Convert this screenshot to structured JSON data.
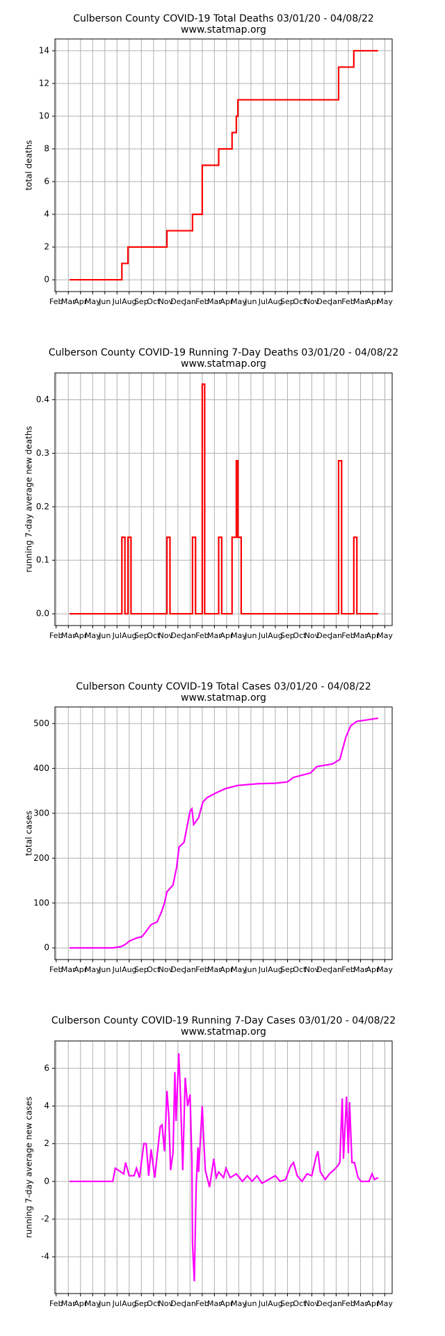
{
  "chart_data": [
    {
      "type": "line",
      "title": "Culberson County COVID-19 Total Deaths 03/01/20 - 04/08/22",
      "subtitle": "www.statmap.org",
      "ylabel": "total deaths",
      "color": "#ff0000",
      "grid": true,
      "xlim": [
        -0.1,
        27.6
      ],
      "ylim": [
        -0.72,
        14.72
      ],
      "yticks": [
        0,
        2,
        4,
        6,
        8,
        10,
        12,
        14
      ],
      "xticks": [
        {
          "value": 0,
          "label": "Feb"
        },
        {
          "value": 1,
          "label": "Mar"
        },
        {
          "value": 2,
          "label": "Apr"
        },
        {
          "value": 3,
          "label": "May"
        },
        {
          "value": 4,
          "label": "Jun"
        },
        {
          "value": 5,
          "label": "Jul"
        },
        {
          "value": 6,
          "label": "Aug"
        },
        {
          "value": 7,
          "label": "Sep"
        },
        {
          "value": 8,
          "label": "Oct"
        },
        {
          "value": 9,
          "label": "Nov"
        },
        {
          "value": 10,
          "label": "Dec"
        },
        {
          "value": 11,
          "label": "Jan"
        },
        {
          "value": 12,
          "label": "Feb"
        },
        {
          "value": 13,
          "label": "Mar"
        },
        {
          "value": 14,
          "label": "Apr"
        },
        {
          "value": 15,
          "label": "May"
        },
        {
          "value": 16,
          "label": "Jun"
        },
        {
          "value": 17,
          "label": "Jul"
        },
        {
          "value": 18,
          "label": "Aug"
        },
        {
          "value": 19,
          "label": "Sep"
        },
        {
          "value": 20,
          "label": "Oct"
        },
        {
          "value": 21,
          "label": "Nov"
        },
        {
          "value": 22,
          "label": "Dec"
        },
        {
          "value": 23,
          "label": "Jan"
        },
        {
          "value": 24,
          "label": "Feb"
        },
        {
          "value": 25,
          "label": "Mar"
        },
        {
          "value": 26,
          "label": "Apr"
        },
        {
          "value": 27,
          "label": "May"
        }
      ],
      "x": [
        1.1,
        5.4,
        5.4,
        5.9,
        5.9,
        9.1,
        9.1,
        11.2,
        11.2,
        12.0,
        12.0,
        13.35,
        13.35,
        14.45,
        14.45,
        14.8,
        14.8,
        14.93,
        14.93,
        23.2,
        23.2,
        24.45,
        24.45,
        26.45
      ],
      "values": [
        0,
        0,
        1,
        1,
        2,
        2,
        3,
        3,
        4,
        4,
        7,
        7,
        8,
        8,
        9,
        9,
        10,
        10,
        11,
        11,
        13,
        13,
        14,
        14
      ]
    },
    {
      "type": "line",
      "title": "Culberson County COVID-19 Running 7-Day Deaths 03/01/20 - 04/08/22",
      "subtitle": "www.statmap.org",
      "ylabel": "running 7-day average new deaths",
      "color": "#ff0000",
      "grid": true,
      "xlim": [
        -0.1,
        27.6
      ],
      "ylim": [
        -0.022,
        0.45
      ],
      "yticks": [
        {
          "value": 0,
          "label": "0.0"
        },
        0.1,
        0.2,
        0.3,
        0.4
      ],
      "xticks": [
        {
          "value": 0,
          "label": "Feb"
        },
        {
          "value": 1,
          "label": "Mar"
        },
        {
          "value": 2,
          "label": "Apr"
        },
        {
          "value": 3,
          "label": "May"
        },
        {
          "value": 4,
          "label": "Jun"
        },
        {
          "value": 5,
          "label": "Jul"
        },
        {
          "value": 6,
          "label": "Aug"
        },
        {
          "value": 7,
          "label": "Sep"
        },
        {
          "value": 8,
          "label": "Oct"
        },
        {
          "value": 9,
          "label": "Nov"
        },
        {
          "value": 10,
          "label": "Dec"
        },
        {
          "value": 11,
          "label": "Jan"
        },
        {
          "value": 12,
          "label": "Feb"
        },
        {
          "value": 13,
          "label": "Mar"
        },
        {
          "value": 14,
          "label": "Apr"
        },
        {
          "value": 15,
          "label": "May"
        },
        {
          "value": 16,
          "label": "Jun"
        },
        {
          "value": 17,
          "label": "Jul"
        },
        {
          "value": 18,
          "label": "Aug"
        },
        {
          "value": 19,
          "label": "Sep"
        },
        {
          "value": 20,
          "label": "Oct"
        },
        {
          "value": 21,
          "label": "Nov"
        },
        {
          "value": 22,
          "label": "Dec"
        },
        {
          "value": 23,
          "label": "Jan"
        },
        {
          "value": 24,
          "label": "Feb"
        },
        {
          "value": 25,
          "label": "Mar"
        },
        {
          "value": 26,
          "label": "Apr"
        },
        {
          "value": 27,
          "label": "May"
        }
      ],
      "x": [
        1.1,
        5.4,
        5.4,
        5.65,
        5.65,
        5.9,
        5.9,
        6.15,
        6.15,
        9.1,
        9.1,
        9.35,
        9.35,
        11.2,
        11.2,
        11.45,
        11.45,
        12.0,
        12.0,
        12.2,
        12.2,
        13.35,
        13.35,
        13.6,
        13.6,
        14.45,
        14.45,
        14.8,
        14.8,
        14.93,
        14.93,
        15.2,
        15.2,
        23.2,
        23.2,
        23.45,
        23.45,
        24.45,
        24.45,
        24.7,
        24.7,
        26.45
      ],
      "values": [
        0,
        0,
        0.143,
        0.143,
        0,
        0,
        0.143,
        0.143,
        0,
        0,
        0.143,
        0.143,
        0,
        0,
        0.143,
        0.143,
        0,
        0,
        0.429,
        0.429,
        0,
        0,
        0.143,
        0.143,
        0,
        0,
        0.143,
        0.143,
        0.286,
        0.286,
        0.143,
        0.143,
        0,
        0,
        0.286,
        0.286,
        0,
        0,
        0.143,
        0.143,
        0,
        0
      ]
    },
    {
      "type": "line",
      "title": "Culberson County COVID-19 Total Cases 03/01/20 - 04/08/22",
      "subtitle": "www.statmap.org",
      "ylabel": "total cases",
      "color": "#ff00ff",
      "grid": true,
      "xlim": [
        -0.1,
        27.6
      ],
      "ylim": [
        -26,
        537
      ],
      "yticks": [
        0,
        100,
        200,
        300,
        400,
        500
      ],
      "xticks": [
        {
          "value": 0,
          "label": "Feb"
        },
        {
          "value": 1,
          "label": "Mar"
        },
        {
          "value": 2,
          "label": "Apr"
        },
        {
          "value": 3,
          "label": "May"
        },
        {
          "value": 4,
          "label": "Jun"
        },
        {
          "value": 5,
          "label": "Jul"
        },
        {
          "value": 6,
          "label": "Aug"
        },
        {
          "value": 7,
          "label": "Sep"
        },
        {
          "value": 8,
          "label": "Oct"
        },
        {
          "value": 9,
          "label": "Nov"
        },
        {
          "value": 10,
          "label": "Dec"
        },
        {
          "value": 11,
          "label": "Jan"
        },
        {
          "value": 12,
          "label": "Feb"
        },
        {
          "value": 13,
          "label": "Mar"
        },
        {
          "value": 14,
          "label": "Apr"
        },
        {
          "value": 15,
          "label": "May"
        },
        {
          "value": 16,
          "label": "Jun"
        },
        {
          "value": 17,
          "label": "Jul"
        },
        {
          "value": 18,
          "label": "Aug"
        },
        {
          "value": 19,
          "label": "Sep"
        },
        {
          "value": 20,
          "label": "Oct"
        },
        {
          "value": 21,
          "label": "Nov"
        },
        {
          "value": 22,
          "label": "Dec"
        },
        {
          "value": 23,
          "label": "Jan"
        },
        {
          "value": 24,
          "label": "Feb"
        },
        {
          "value": 25,
          "label": "Mar"
        },
        {
          "value": 26,
          "label": "Apr"
        },
        {
          "value": 27,
          "label": "May"
        }
      ],
      "x": [
        1.1,
        4.65,
        5.35,
        5.7,
        6.0,
        6.6,
        7.05,
        7.4,
        7.8,
        8.3,
        8.65,
        8.9,
        9.1,
        9.6,
        9.9,
        10.1,
        10.5,
        11.0,
        11.15,
        11.3,
        11.7,
        12.05,
        12.4,
        13.1,
        13.9,
        14.9,
        16.6,
        18,
        19,
        19.5,
        20.9,
        21.4,
        22.7,
        23.3,
        23.5,
        23.8,
        24.2,
        24.7,
        25.5,
        26.45
      ],
      "values": [
        0,
        0,
        3,
        8,
        15,
        22,
        25,
        37,
        52,
        58,
        80,
        100,
        125,
        140,
        180,
        225,
        235,
        305,
        310,
        275,
        290,
        325,
        335,
        345,
        355,
        362,
        366,
        367,
        370,
        380,
        390,
        404,
        410,
        420,
        440,
        470,
        495,
        505,
        508,
        512
      ]
    },
    {
      "type": "line",
      "title": "Culberson County COVID-19 Running 7-Day Cases 03/01/20 - 04/08/22",
      "subtitle": "www.statmap.org",
      "ylabel": "running 7-day average new cases",
      "color": "#ff00ff",
      "grid": true,
      "xlim": [
        -0.1,
        27.6
      ],
      "ylim": [
        -5.95,
        7.45
      ],
      "yticks": [
        -4,
        -2,
        0,
        2,
        4,
        6
      ],
      "xticks": [
        {
          "value": 0,
          "label": "Feb"
        },
        {
          "value": 1,
          "label": "Mar"
        },
        {
          "value": 2,
          "label": "Apr"
        },
        {
          "value": 3,
          "label": "May"
        },
        {
          "value": 4,
          "label": "Jun"
        },
        {
          "value": 5,
          "label": "Jul"
        },
        {
          "value": 6,
          "label": "Aug"
        },
        {
          "value": 7,
          "label": "Sep"
        },
        {
          "value": 8,
          "label": "Oct"
        },
        {
          "value": 9,
          "label": "Nov"
        },
        {
          "value": 10,
          "label": "Dec"
        },
        {
          "value": 11,
          "label": "Jan"
        },
        {
          "value": 12,
          "label": "Feb"
        },
        {
          "value": 13,
          "label": "Mar"
        },
        {
          "value": 14,
          "label": "Apr"
        },
        {
          "value": 15,
          "label": "May"
        },
        {
          "value": 16,
          "label": "Jun"
        },
        {
          "value": 17,
          "label": "Jul"
        },
        {
          "value": 18,
          "label": "Aug"
        },
        {
          "value": 19,
          "label": "Sep"
        },
        {
          "value": 20,
          "label": "Oct"
        },
        {
          "value": 21,
          "label": "Nov"
        },
        {
          "value": 22,
          "label": "Dec"
        },
        {
          "value": 23,
          "label": "Jan"
        },
        {
          "value": 24,
          "label": "Feb"
        },
        {
          "value": 25,
          "label": "Mar"
        },
        {
          "value": 26,
          "label": "Apr"
        },
        {
          "value": 27,
          "label": "May"
        }
      ],
      "x": [
        1.1,
        4.65,
        4.86,
        5.55,
        5.7,
        6.0,
        6.4,
        6.6,
        6.85,
        7.2,
        7.4,
        7.6,
        7.8,
        8.1,
        8.55,
        8.7,
        8.9,
        9.1,
        9.25,
        9.4,
        9.6,
        9.75,
        9.85,
        10.07,
        10.2,
        10.4,
        10.6,
        10.8,
        11.0,
        11.15,
        11.2,
        11.35,
        11.5,
        11.65,
        11.7,
        12.0,
        12.1,
        12.25,
        12.6,
        12.95,
        13.15,
        13.35,
        13.75,
        13.95,
        14.3,
        14.8,
        15.3,
        15.7,
        16.1,
        16.5,
        16.9,
        17.45,
        18.0,
        18.4,
        18.85,
        19.25,
        19.5,
        19.8,
        20.2,
        20.6,
        21.0,
        21.35,
        21.5,
        21.7,
        22.1,
        22.45,
        22.8,
        23.1,
        23.3,
        23.5,
        23.6,
        23.85,
        24.0,
        24.1,
        24.3,
        24.5,
        24.8,
        25.05,
        25.7,
        25.95,
        26.15,
        26.45
      ],
      "values": [
        0,
        0,
        0.7,
        0.4,
        1.0,
        0.3,
        0.3,
        0.7,
        0.2,
        2.0,
        2.0,
        0.3,
        1.7,
        0.2,
        2.9,
        3.0,
        1.6,
        4.8,
        3.5,
        0.6,
        1.5,
        5.8,
        3.2,
        6.8,
        4.8,
        0.6,
        5.5,
        4.0,
        4.6,
        1.0,
        -3.3,
        -5.3,
        -0.3,
        1.8,
        0.5,
        4.0,
        2.5,
        0.6,
        -0.3,
        1.2,
        0.2,
        0.5,
        0.2,
        0.7,
        0.2,
        0.4,
        0.0,
        0.3,
        0.0,
        0.3,
        -0.1,
        0.1,
        0.3,
        0.0,
        0.1,
        0.8,
        1.0,
        0.3,
        0.0,
        0.4,
        0.3,
        1.3,
        1.6,
        0.5,
        0.1,
        0.4,
        0.6,
        0.8,
        1.0,
        4.4,
        1.2,
        4.5,
        1.5,
        4.2,
        1.0,
        1.0,
        0.2,
        0.0,
        0.0,
        0.4,
        0.1,
        0.2
      ]
    }
  ]
}
